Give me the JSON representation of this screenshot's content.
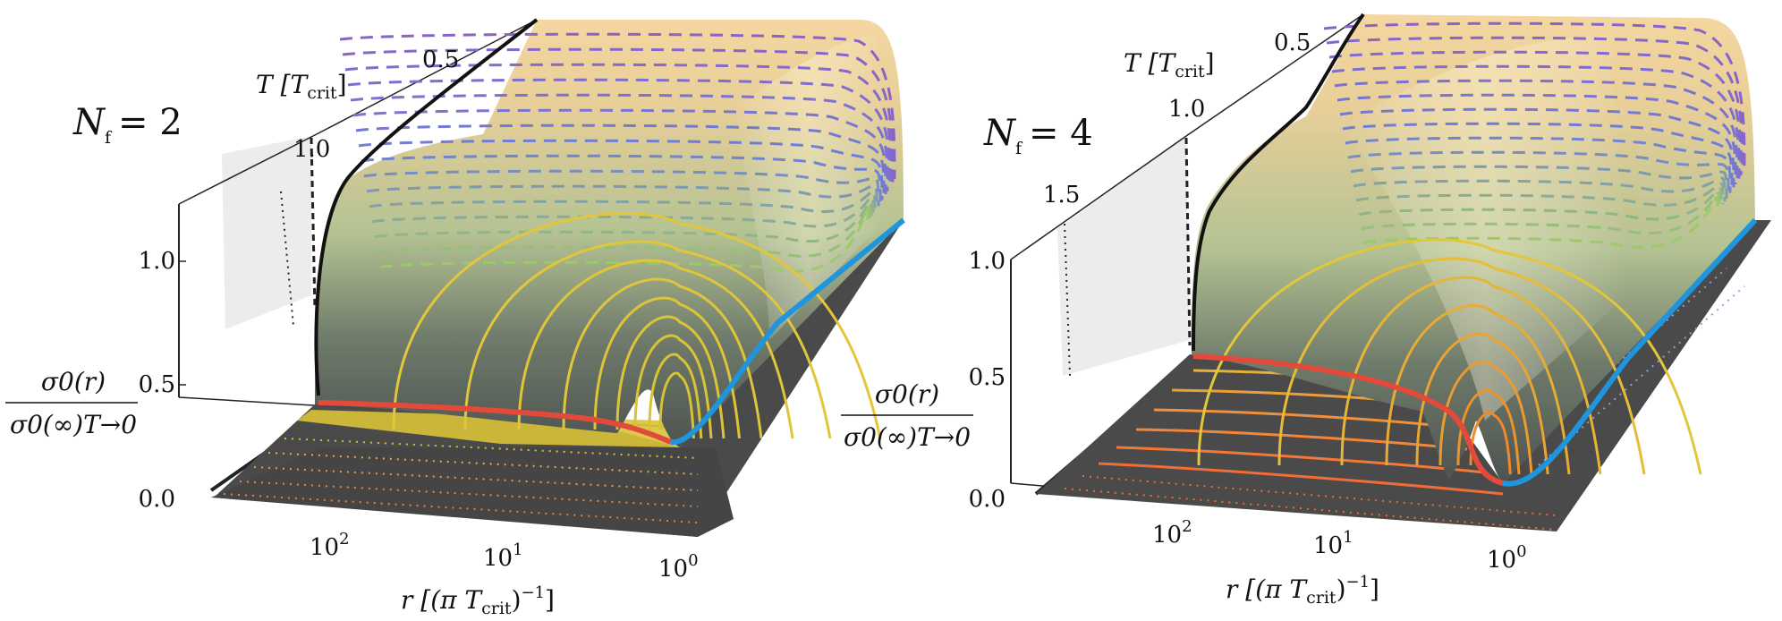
{
  "chart_data": [
    {
      "type": "surface-3d",
      "panel_label": "N_f = 2",
      "panel_label_parts": {
        "sym": "N",
        "sub": "f",
        "eq": "= 2"
      },
      "xlabel": "r [(π T_crit)^-1]",
      "xlabel_parts": {
        "pre": "r [(π T",
        "sub": "crit",
        "post": ")",
        "sup": "−1",
        "close": "]"
      },
      "ylabel_num": "σ0(r)",
      "ylabel_den": "σ0(∞)T→0",
      "tlabel": "T [T_crit]",
      "tlabel_parts": {
        "pre": "T [T",
        "sub": "crit",
        "post": "]"
      },
      "x_ticks": [
        {
          "base": "10",
          "exp": "2"
        },
        {
          "base": "10",
          "exp": "1"
        },
        {
          "base": "10",
          "exp": "0"
        }
      ],
      "z_ticks": [
        "0.0",
        "0.5",
        "1.0"
      ],
      "t_ticks": [
        "1.0",
        "0.5"
      ],
      "zlim": [
        0,
        1
      ]
    },
    {
      "type": "surface-3d",
      "panel_label": "N_f = 4",
      "panel_label_parts": {
        "sym": "N",
        "sub": "f",
        "eq": "= 4"
      },
      "xlabel": "r [(π T_crit)^-1]",
      "xlabel_parts": {
        "pre": "r [(π T",
        "sub": "crit",
        "post": ")",
        "sup": "−1",
        "close": "]"
      },
      "ylabel_num": "σ0(r)",
      "ylabel_den": "σ0(∞)T→0",
      "tlabel": "T [T_crit]",
      "tlabel_parts": {
        "pre": "T [T",
        "sub": "crit",
        "post": "]"
      },
      "x_ticks": [
        {
          "base": "10",
          "exp": "2"
        },
        {
          "base": "10",
          "exp": "1"
        },
        {
          "base": "10",
          "exp": "0"
        }
      ],
      "z_ticks": [
        "0.0",
        "0.5",
        "1.0"
      ],
      "t_ticks": [
        "1.5",
        "1.0",
        "0.5"
      ],
      "zlim": [
        0,
        1
      ]
    }
  ],
  "colors": {
    "floor": "#4a4a4a",
    "surface_top": "#f2d39a",
    "surface_mid": "#b9c98e",
    "surface_low": "#5c6658",
    "critical_curve": "#e24a3b",
    "t0_curve": "#1f95dd",
    "contour_yellow": "#e3c63a",
    "contour_orange": "#ef8a2a",
    "dashed_purple": "#8a63c7",
    "dashed_blue": "#6f7fd6",
    "dashed_green": "#9cc96a"
  }
}
